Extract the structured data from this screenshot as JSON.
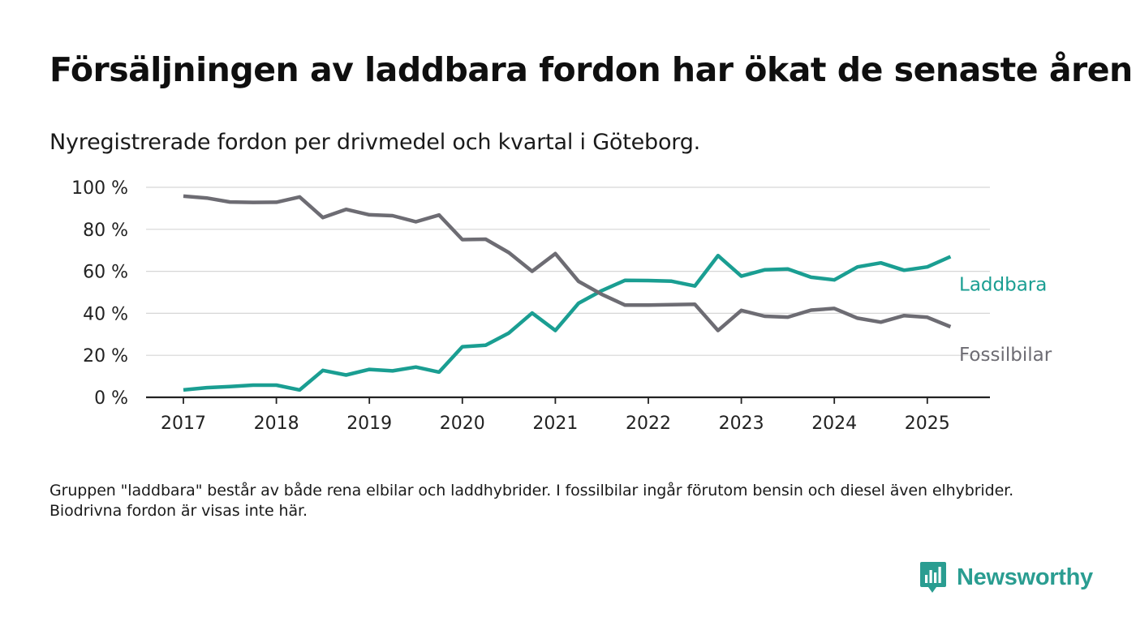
{
  "header": {
    "title": "Försäljningen av laddbara fordon har ökat de senaste åren",
    "subtitle": "Nyregistrerade fordon per drivmedel och kvartal i Göteborg."
  },
  "footnote": "Gruppen \"laddbara\" består av både rena elbilar och laddhybrider. I fossilbilar ingår förutom bensin och diesel även elhybrider. Biodrivna fordon är visas inte här.",
  "brand": {
    "name": "Newsworthy",
    "icon": "newsworthy-chart-bubble-icon",
    "color": "#2a9d91"
  },
  "chart_data": {
    "type": "line",
    "x_ticks": [
      "2017",
      "2018",
      "2019",
      "2020",
      "2021",
      "2022",
      "2023",
      "2024",
      "2025"
    ],
    "y_ticks": [
      "0 %",
      "20 %",
      "40 %",
      "60 %",
      "80 %",
      "100 %"
    ],
    "ylim": [
      0,
      100
    ],
    "grid": true,
    "x": [
      "2017-Q1",
      "2017-Q2",
      "2017-Q3",
      "2017-Q4",
      "2018-Q1",
      "2018-Q2",
      "2018-Q3",
      "2018-Q4",
      "2019-Q1",
      "2019-Q2",
      "2019-Q3",
      "2019-Q4",
      "2020-Q1",
      "2020-Q2",
      "2020-Q3",
      "2020-Q4",
      "2021-Q1",
      "2021-Q2",
      "2021-Q3",
      "2021-Q4",
      "2022-Q1",
      "2022-Q2",
      "2022-Q3",
      "2022-Q4",
      "2023-Q1",
      "2023-Q2",
      "2023-Q3",
      "2023-Q4",
      "2024-Q1",
      "2024-Q2",
      "2024-Q3",
      "2024-Q4",
      "2025-Q1",
      "2025-Q2"
    ],
    "series": [
      {
        "name": "Laddbara",
        "color": "#1a9e92",
        "values": [
          3.5,
          4.6,
          5.1,
          5.8,
          5.8,
          3.5,
          12.8,
          10.6,
          13.3,
          12.6,
          14.4,
          12.0,
          24.1,
          24.8,
          30.6,
          40.1,
          31.8,
          44.8,
          50.8,
          55.7,
          55.6,
          55.3,
          53.0,
          67.5,
          57.7,
          60.7,
          61.1,
          57.2,
          55.9,
          62.1,
          64.0,
          60.5,
          62.1,
          67.0
        ]
      },
      {
        "name": "Fossilbilar",
        "color": "#6d6c73",
        "values": [
          95.8,
          94.9,
          93.0,
          92.8,
          92.9,
          95.4,
          85.6,
          89.5,
          86.9,
          86.5,
          83.6,
          86.8,
          75.1,
          75.3,
          68.9,
          60.0,
          68.4,
          55.2,
          49.0,
          43.9,
          43.9,
          44.1,
          44.3,
          31.8,
          41.4,
          38.6,
          38.2,
          41.5,
          42.3,
          37.7,
          35.8,
          38.9,
          38.1,
          33.6
        ]
      }
    ]
  }
}
